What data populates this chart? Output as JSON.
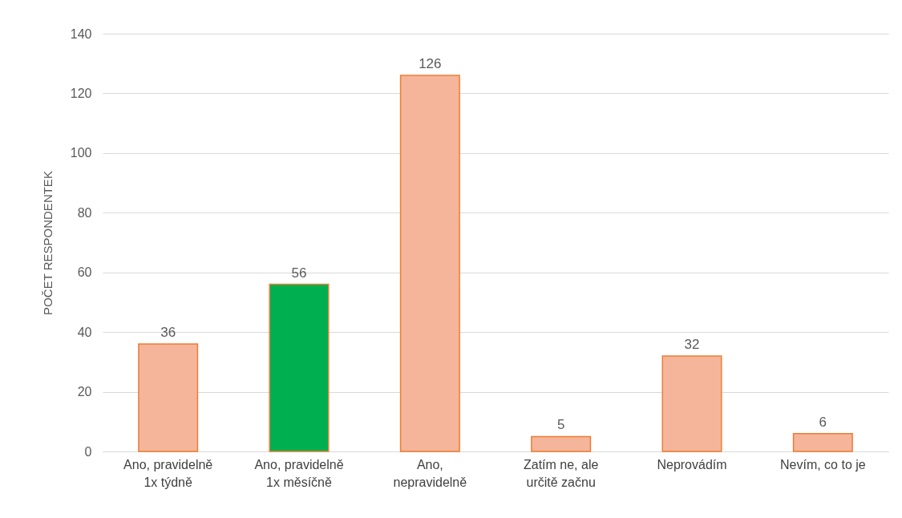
{
  "chart_data": {
    "type": "bar",
    "ylabel": "POČET RESPONDENTEK",
    "categories": [
      "Ano, pravidelně\n1x týdně",
      "Ano, pravidelně\n1x měsíčně",
      "Ano,\nnepravidelně",
      "Zatím ne, ale\nurčitě začnu",
      "Neprovádím",
      "Nevím, co to je"
    ],
    "values": [
      36,
      56,
      126,
      5,
      32,
      6
    ],
    "colors": [
      "#f5b59b",
      "#00b050",
      "#f5b59b",
      "#f5b59b",
      "#f5b59b",
      "#f5b59b"
    ],
    "ylim": [
      0,
      140
    ],
    "yticks": [
      0,
      20,
      40,
      60,
      80,
      100,
      120,
      140
    ],
    "grid": "y",
    "data_labels": true
  }
}
